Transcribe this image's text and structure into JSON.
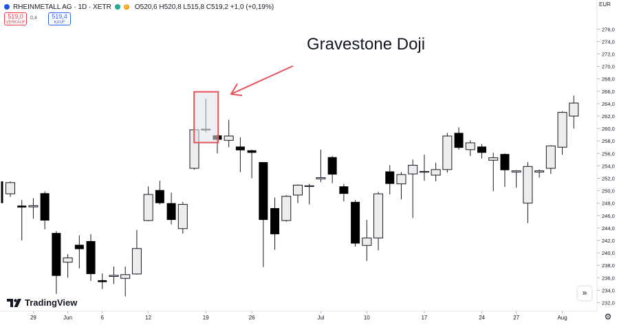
{
  "legend": {
    "symbol": "RHEINMETALL AG · 1D · XETR",
    "ohlc": "O520,6 H520,8 L515,8 C519,2 +1,0 (+0,19%)",
    "market_status_letter": "D"
  },
  "trade": {
    "sell_price": "519,0",
    "sell_label": "VERKAUF",
    "spread": "0,4",
    "buy_price": "519,4",
    "buy_label": "KAUF"
  },
  "annotation": {
    "text": "Gravestone Doji",
    "target_date": "2023-06-20",
    "color": "#e8515a"
  },
  "branding": {
    "logo_text": "TradingView"
  },
  "price_scale": {
    "currency_label": "EUR"
  },
  "colors": {
    "up_fill": "#ededed",
    "down_fill": "#000000",
    "wick": "#131722",
    "annotation": "#e8515a"
  },
  "chart_data": {
    "type": "candlestick",
    "y_ticks": [
      "232,0",
      "234,0",
      "236,0",
      "238,0",
      "240,0",
      "242,0",
      "244,0",
      "246,0",
      "248,0",
      "250,0",
      "252,0",
      "254,0",
      "256,0",
      "258,0",
      "260,0",
      "262,0",
      "264,0",
      "266,0",
      "268,0",
      "270,0",
      "272,0",
      "274,0",
      "276,0"
    ],
    "ylim": [
      231,
      277
    ],
    "x_tick_labels": [
      "29",
      "Jun",
      "6",
      "12",
      "19",
      "26",
      "Jul",
      "10",
      "17",
      "24",
      "27",
      "Aug"
    ],
    "candles": [
      {
        "date": "2023-05-25",
        "open": 249.5,
        "high": 251.5,
        "low": 249.0,
        "close": 251.3
      },
      {
        "date": "2023-05-26",
        "open": 247.6,
        "high": 248.5,
        "low": 242.0,
        "close": 247.3
      },
      {
        "date": "2023-05-29",
        "open": 247.4,
        "high": 248.8,
        "low": 245.5,
        "close": 247.6
      },
      {
        "date": "2023-05-30",
        "open": 249.6,
        "high": 249.9,
        "low": 243.8,
        "close": 245.2
      },
      {
        "date": "2023-05-31",
        "open": 243.2,
        "high": 243.5,
        "low": 233.4,
        "close": 236.3
      },
      {
        "date": "2023-06-01",
        "open": 238.5,
        "high": 239.8,
        "low": 236.0,
        "close": 239.2
      },
      {
        "date": "2023-06-02",
        "open": 241.3,
        "high": 242.8,
        "low": 237.5,
        "close": 240.6
      },
      {
        "date": "2023-06-05",
        "open": 241.9,
        "high": 243.0,
        "low": 235.5,
        "close": 236.6
      },
      {
        "date": "2023-06-06",
        "open": 235.6,
        "high": 236.7,
        "low": 234.2,
        "close": 235.3
      },
      {
        "date": "2023-06-07",
        "open": 236.2,
        "high": 237.8,
        "low": 235.0,
        "close": 236.4
      },
      {
        "date": "2023-06-08",
        "open": 235.9,
        "high": 237.8,
        "low": 233.0,
        "close": 236.5
      },
      {
        "date": "2023-06-09",
        "open": 236.6,
        "high": 243.7,
        "low": 236.5,
        "close": 240.7
      },
      {
        "date": "2023-06-12",
        "open": 245.2,
        "high": 250.7,
        "low": 245.1,
        "close": 249.4
      },
      {
        "date": "2023-06-13",
        "open": 250.1,
        "high": 251.6,
        "low": 247.8,
        "close": 248.0
      },
      {
        "date": "2023-06-14",
        "open": 248.0,
        "high": 249.7,
        "low": 244.6,
        "close": 245.3
      },
      {
        "date": "2023-06-15",
        "open": 243.9,
        "high": 248.2,
        "low": 243.1,
        "close": 247.8
      },
      {
        "date": "2023-06-16",
        "open": 253.6,
        "high": 260.0,
        "low": 253.4,
        "close": 259.8
      },
      {
        "date": "2023-06-20",
        "open": 259.9,
        "high": 264.8,
        "low": 259.4,
        "close": 259.9
      },
      {
        "date": "2023-06-21",
        "open": 258.9,
        "high": 259.0,
        "low": 256.0,
        "close": 258.2
      },
      {
        "date": "2023-06-22",
        "open": 258.1,
        "high": 261.4,
        "low": 257.0,
        "close": 258.8
      },
      {
        "date": "2023-06-23",
        "open": 257.1,
        "high": 258.6,
        "low": 253.0,
        "close": 256.5
      },
      {
        "date": "2023-06-26",
        "open": 256.5,
        "high": 256.6,
        "low": 252.0,
        "close": 256.1
      },
      {
        "date": "2023-06-27",
        "open": 254.6,
        "high": 254.6,
        "low": 237.7,
        "close": 245.3
      },
      {
        "date": "2023-06-28",
        "open": 247.2,
        "high": 248.9,
        "low": 240.5,
        "close": 243.0
      },
      {
        "date": "2023-06-29",
        "open": 245.2,
        "high": 249.3,
        "low": 245.0,
        "close": 249.1
      },
      {
        "date": "2023-06-30",
        "open": 249.3,
        "high": 251.0,
        "low": 248.0,
        "close": 250.9
      },
      {
        "date": "2023-07-03",
        "open": 250.8,
        "high": 251.1,
        "low": 247.8,
        "close": 250.8
      },
      {
        "date": "2023-07-04",
        "open": 251.9,
        "high": 256.6,
        "low": 251.4,
        "close": 252.1
      },
      {
        "date": "2023-07-05",
        "open": 255.4,
        "high": 255.6,
        "low": 251.2,
        "close": 252.6
      },
      {
        "date": "2023-07-06",
        "open": 250.7,
        "high": 251.1,
        "low": 248.3,
        "close": 249.5
      },
      {
        "date": "2023-07-07",
        "open": 248.2,
        "high": 248.5,
        "low": 241.0,
        "close": 241.5
      },
      {
        "date": "2023-07-10",
        "open": 241.2,
        "high": 245.3,
        "low": 238.7,
        "close": 242.4
      },
      {
        "date": "2023-07-11",
        "open": 242.4,
        "high": 249.8,
        "low": 240.4,
        "close": 249.5
      },
      {
        "date": "2023-07-12",
        "open": 253.1,
        "high": 254.1,
        "low": 249.4,
        "close": 251.1
      },
      {
        "date": "2023-07-13",
        "open": 251.1,
        "high": 253.0,
        "low": 248.6,
        "close": 252.6
      },
      {
        "date": "2023-07-14",
        "open": 252.7,
        "high": 255.0,
        "low": 245.6,
        "close": 254.1
      },
      {
        "date": "2023-07-17",
        "open": 253.0,
        "high": 255.8,
        "low": 251.6,
        "close": 253.1
      },
      {
        "date": "2023-07-18",
        "open": 252.5,
        "high": 254.5,
        "low": 251.5,
        "close": 253.4
      },
      {
        "date": "2023-07-19",
        "open": 253.4,
        "high": 259.3,
        "low": 252.9,
        "close": 258.8
      },
      {
        "date": "2023-07-20",
        "open": 259.3,
        "high": 260.2,
        "low": 256.6,
        "close": 256.9
      },
      {
        "date": "2023-07-21",
        "open": 256.6,
        "high": 258.1,
        "low": 255.6,
        "close": 257.7
      },
      {
        "date": "2023-07-24",
        "open": 257.1,
        "high": 257.5,
        "low": 255.2,
        "close": 256.1
      },
      {
        "date": "2023-07-25",
        "open": 254.9,
        "high": 256.1,
        "low": 249.9,
        "close": 255.3
      },
      {
        "date": "2023-07-26",
        "open": 255.9,
        "high": 256.0,
        "low": 250.6,
        "close": 253.3
      },
      {
        "date": "2023-07-27",
        "open": 253.0,
        "high": 253.3,
        "low": 250.5,
        "close": 253.2
      },
      {
        "date": "2023-07-28",
        "open": 248.0,
        "high": 254.6,
        "low": 244.8,
        "close": 253.9
      },
      {
        "date": "2023-07-31",
        "open": 253.0,
        "high": 253.4,
        "low": 252.1,
        "close": 253.2
      },
      {
        "date": "2023-08-01",
        "open": 253.6,
        "high": 257.3,
        "low": 252.7,
        "close": 257.2
      },
      {
        "date": "2023-08-02",
        "open": 257.0,
        "high": 262.8,
        "low": 255.8,
        "close": 262.6
      },
      {
        "date": "2023-08-03",
        "open": 262.0,
        "high": 265.3,
        "low": 260.0,
        "close": 264.1
      }
    ]
  }
}
